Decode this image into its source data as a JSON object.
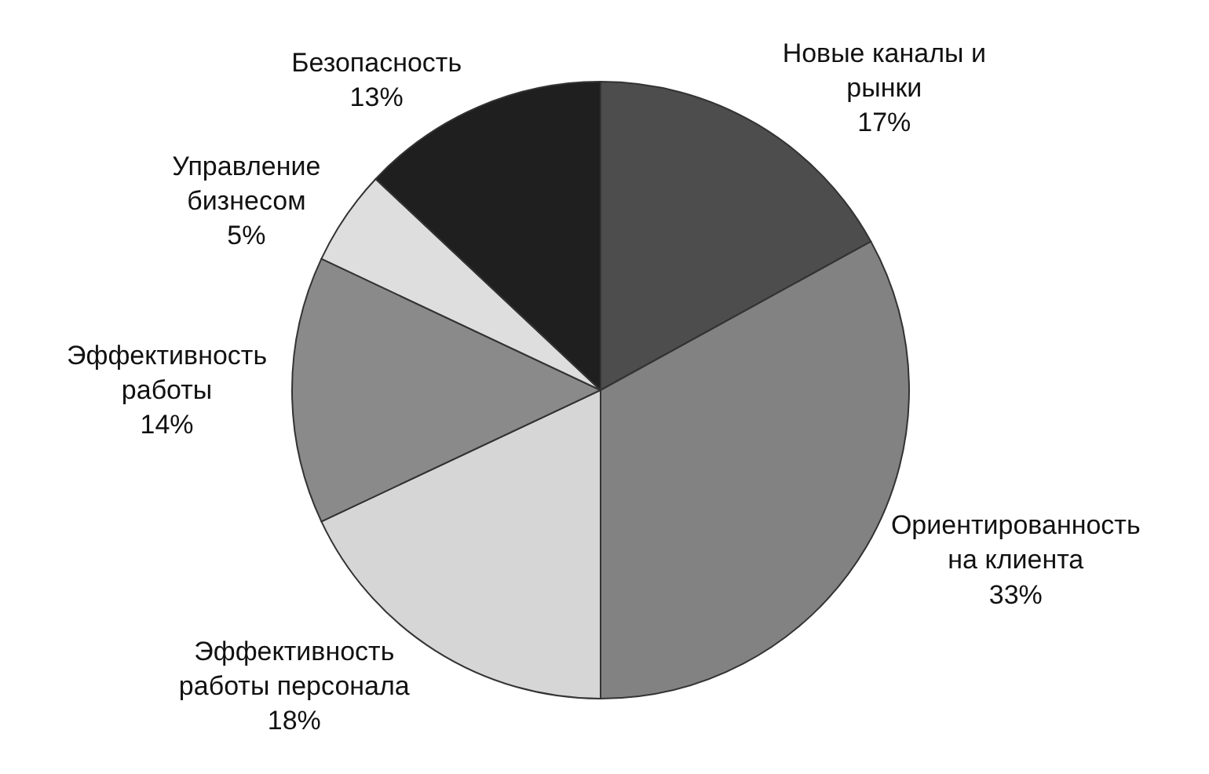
{
  "chart_data": {
    "type": "pie",
    "categories": [
      "Новые каналы и рынки",
      "Ориентированность на клиента",
      "Эффективность работы персонала",
      "Эффективность работы",
      "Управление бизнесом",
      "Безопасность"
    ],
    "values": [
      17,
      33,
      18,
      14,
      5,
      13
    ],
    "value_labels": [
      "17%",
      "33%",
      "18%",
      "14%",
      "5%",
      "13%"
    ],
    "colors": [
      "#4d4d4d",
      "#828282",
      "#d6d6d6",
      "#8a8a8a",
      "#dedede",
      "#1f1f1f"
    ],
    "legend": false
  }
}
